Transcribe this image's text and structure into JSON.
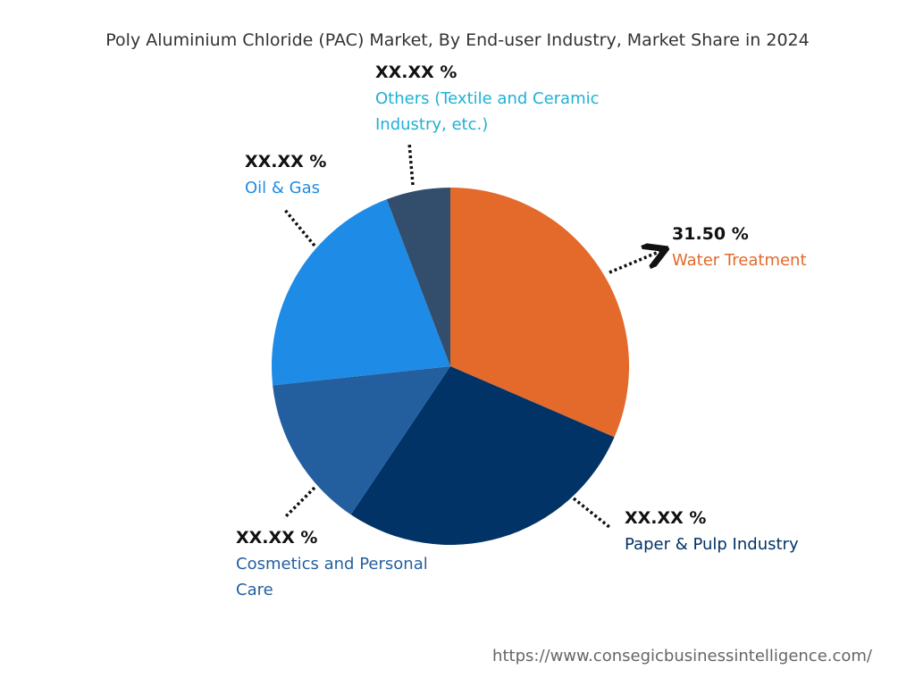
{
  "chart_data": {
    "type": "pie",
    "title": "Poly Aluminium Chloride (PAC) Market, By End-user Industry, Market Share in 2024",
    "categories": [
      "Water Treatment",
      "Paper & Pulp Industry",
      "Cosmetics and Personal Care",
      "Oil & Gas",
      "Others (Textile and Ceramic Industry, etc.)"
    ],
    "values": [
      31.5,
      27.9,
      13.9,
      20.9,
      5.8
    ],
    "value_labels": [
      "31.50 %",
      "XX.XX %",
      "XX.XX %",
      "XX.XX %",
      "XX.XX %"
    ],
    "colors": [
      "#e36a2b",
      "#023366",
      "#235f9f",
      "#1e8be6",
      "#324e6c"
    ]
  },
  "source": "https://www.consegicbusinessintelligence.com/"
}
